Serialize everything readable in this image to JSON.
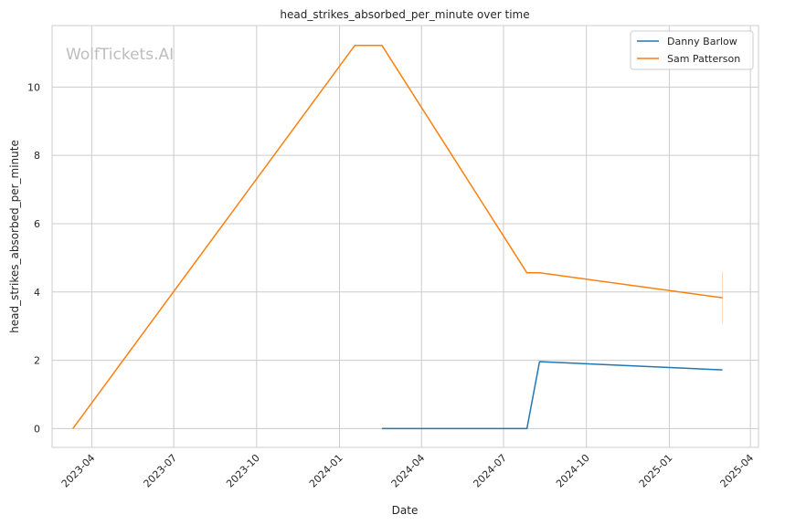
{
  "chart_data": {
    "type": "line",
    "title": "head_strikes_absorbed_per_minute over time",
    "xlabel": "Date",
    "ylabel": "head_strikes_absorbed_per_minute",
    "watermark": "WolfTickets.AI",
    "x_ticks": [
      "2023-04",
      "2023-07",
      "2023-10",
      "2024-01",
      "2024-04",
      "2024-07",
      "2024-10",
      "2025-01",
      "2025-04"
    ],
    "y_ticks": [
      0,
      2,
      4,
      6,
      8,
      10
    ],
    "xlim": [
      "2023-02-16",
      "2025-04-10"
    ],
    "ylim": [
      -0.55,
      11.8
    ],
    "grid": true,
    "legend_position": "top-right",
    "series": [
      {
        "name": "Danny Barlow",
        "color": "#1f77b4",
        "points": [
          {
            "x": "2024-02-17",
            "y": 0.0
          },
          {
            "x": "2024-07-27",
            "y": 0.0
          },
          {
            "x": "2024-08-10",
            "y": 1.96
          },
          {
            "x": "2025-03-01",
            "y": 1.72
          }
        ]
      },
      {
        "name": "Sam Patterson",
        "color": "#ff7f0e",
        "points": [
          {
            "x": "2023-03-11",
            "y": 0.0
          },
          {
            "x": "2024-01-18",
            "y": 11.22
          },
          {
            "x": "2024-02-17",
            "y": 11.22
          },
          {
            "x": "2024-07-27",
            "y": 4.56
          },
          {
            "x": "2024-08-10",
            "y": 4.56
          },
          {
            "x": "2025-03-01",
            "y": 3.83
          }
        ]
      }
    ]
  }
}
